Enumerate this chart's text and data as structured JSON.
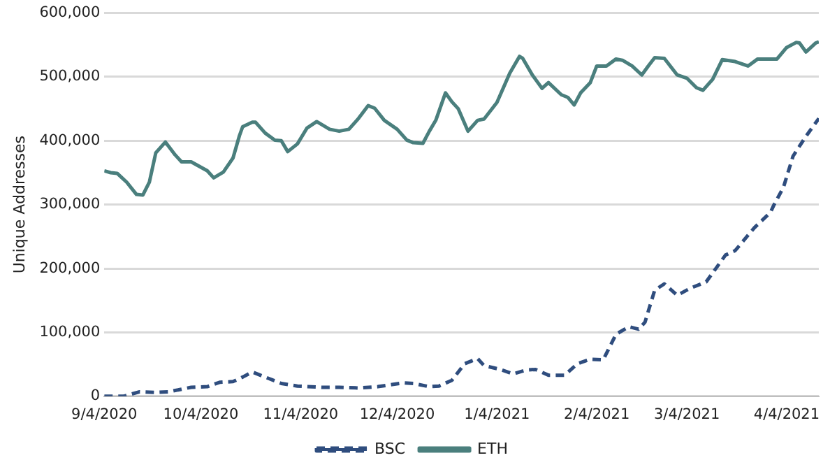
{
  "chart_data": {
    "type": "line",
    "ylabel": "Unique Addresses",
    "xlim": [
      "2020-09-04",
      "2021-04-14"
    ],
    "xticks": [
      {
        "value": "2020-09-04",
        "label": "9/4/2020"
      },
      {
        "value": "2020-10-04",
        "label": "10/4/2020"
      },
      {
        "value": "2020-11-04",
        "label": "11/4/2020"
      },
      {
        "value": "2020-12-04",
        "label": "12/4/2020"
      },
      {
        "value": "2021-01-04",
        "label": "1/4/2021"
      },
      {
        "value": "2021-02-04",
        "label": "2/4/2021"
      },
      {
        "value": "2021-03-04",
        "label": "3/4/2021"
      },
      {
        "value": "2021-04-04",
        "label": "4/4/2021"
      }
    ],
    "ylim": [
      0,
      600000
    ],
    "yticks": [
      {
        "value": 0,
        "label": "0"
      },
      {
        "value": 100000,
        "label": "100,000"
      },
      {
        "value": 200000,
        "label": "200,000"
      },
      {
        "value": 300000,
        "label": "300,000"
      },
      {
        "value": 400000,
        "label": "400,000"
      },
      {
        "value": 500000,
        "label": "500,000"
      },
      {
        "value": 600000,
        "label": "600,000"
      }
    ],
    "grid": "y",
    "legend": "bottom",
    "marker": "none",
    "series": [
      {
        "name": "BSC",
        "color": "#2f4d7e",
        "line_style": "dashed",
        "x": [
          "2020-09-04",
          "2020-09-10",
          "2020-09-15",
          "2020-09-20",
          "2020-09-24",
          "2020-10-01",
          "2020-10-06",
          "2020-10-10",
          "2020-10-14",
          "2020-10-17",
          "2020-10-20",
          "2020-10-23",
          "2020-10-29",
          "2020-11-03",
          "2020-11-11",
          "2020-11-16",
          "2020-11-22",
          "2020-11-28",
          "2020-12-02",
          "2020-12-06",
          "2020-12-09",
          "2020-12-14",
          "2020-12-17",
          "2020-12-21",
          "2020-12-25",
          "2020-12-29",
          "2020-12-31",
          "2021-01-05",
          "2021-01-09",
          "2021-01-13",
          "2021-01-16",
          "2021-01-20",
          "2021-01-25",
          "2021-01-29",
          "2021-02-02",
          "2021-02-06",
          "2021-02-10",
          "2021-02-14",
          "2021-02-17",
          "2021-02-19",
          "2021-02-22",
          "2021-02-25",
          "2021-03-01",
          "2021-03-05",
          "2021-03-10",
          "2021-03-16",
          "2021-03-19",
          "2021-03-25",
          "2021-03-30",
          "2021-03-31",
          "2021-04-03",
          "2021-04-06",
          "2021-04-10",
          "2021-04-14"
        ],
        "values": [
          0,
          0,
          7000,
          6000,
          7000,
          14000,
          15000,
          22000,
          23000,
          30000,
          38000,
          32000,
          20000,
          16000,
          14000,
          14000,
          13000,
          15000,
          18000,
          21000,
          20000,
          15000,
          16000,
          25000,
          51000,
          59000,
          48000,
          42000,
          35000,
          41000,
          42000,
          33000,
          33000,
          51000,
          58000,
          57000,
          97000,
          109000,
          105000,
          116000,
          166000,
          176000,
          158000,
          169000,
          179000,
          221000,
          228000,
          264000,
          288000,
          299000,
          327000,
          376000,
          407000,
          435000
        ]
      },
      {
        "name": "ETH",
        "color": "#4a7f7d",
        "line_style": "solid",
        "x": [
          "2020-09-04",
          "2020-09-06",
          "2020-09-08",
          "2020-09-11",
          "2020-09-14",
          "2020-09-16",
          "2020-09-18",
          "2020-09-20",
          "2020-09-23",
          "2020-09-26",
          "2020-09-28",
          "2020-10-01",
          "2020-10-06",
          "2020-10-08",
          "2020-10-11",
          "2020-10-14",
          "2020-10-16",
          "2020-10-17",
          "2020-10-20",
          "2020-10-21",
          "2020-10-24",
          "2020-10-27",
          "2020-10-29",
          "2020-10-31",
          "2020-11-03",
          "2020-11-06",
          "2020-11-09",
          "2020-11-13",
          "2020-11-16",
          "2020-11-19",
          "2020-11-22",
          "2020-11-25",
          "2020-11-27",
          "2020-11-30",
          "2020-12-04",
          "2020-12-07",
          "2020-12-09",
          "2020-12-12",
          "2020-12-14",
          "2020-12-16",
          "2020-12-19",
          "2020-12-21",
          "2020-12-23",
          "2020-12-26",
          "2020-12-29",
          "2020-12-31",
          "2021-01-04",
          "2021-01-08",
          "2021-01-11",
          "2021-01-12",
          "2021-01-15",
          "2021-01-18",
          "2021-01-20",
          "2021-01-24",
          "2021-01-26",
          "2021-01-28",
          "2021-01-30",
          "2021-02-02",
          "2021-02-04",
          "2021-02-07",
          "2021-02-10",
          "2021-02-12",
          "2021-02-15",
          "2021-02-18",
          "2021-02-20",
          "2021-02-22",
          "2021-02-25",
          "2021-03-01",
          "2021-03-04",
          "2021-03-07",
          "2021-03-09",
          "2021-03-12",
          "2021-03-15",
          "2021-03-19",
          "2021-03-23",
          "2021-03-26",
          "2021-03-29",
          "2021-04-01",
          "2021-04-04",
          "2021-04-07",
          "2021-04-08",
          "2021-04-10",
          "2021-04-13",
          "2021-04-14"
        ],
        "values": [
          353000,
          350000,
          349000,
          335000,
          316000,
          315000,
          335000,
          381000,
          398000,
          378000,
          367000,
          367000,
          353000,
          342000,
          351000,
          373000,
          408000,
          422000,
          429000,
          429000,
          412000,
          401000,
          400000,
          383000,
          395000,
          420000,
          430000,
          418000,
          415000,
          418000,
          435000,
          455000,
          451000,
          432000,
          418000,
          401000,
          397000,
          396000,
          415000,
          432000,
          475000,
          461000,
          450000,
          415000,
          432000,
          434000,
          460000,
          506000,
          532000,
          529000,
          503000,
          482000,
          491000,
          472000,
          468000,
          456000,
          475000,
          491000,
          517000,
          517000,
          528000,
          526000,
          517000,
          503000,
          517000,
          530000,
          529000,
          503000,
          498000,
          483000,
          479000,
          496000,
          527000,
          524000,
          517000,
          528000,
          528000,
          528000,
          546000,
          554000,
          553000,
          539000,
          553000,
          555000
        ]
      }
    ]
  }
}
